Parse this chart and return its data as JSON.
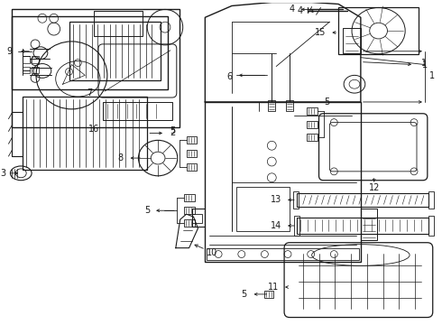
{
  "background_color": "#ffffff",
  "line_color": "#1a1a1a",
  "fig_width": 4.9,
  "fig_height": 3.6,
  "dpi": 100,
  "label_fontsize": 7.0
}
